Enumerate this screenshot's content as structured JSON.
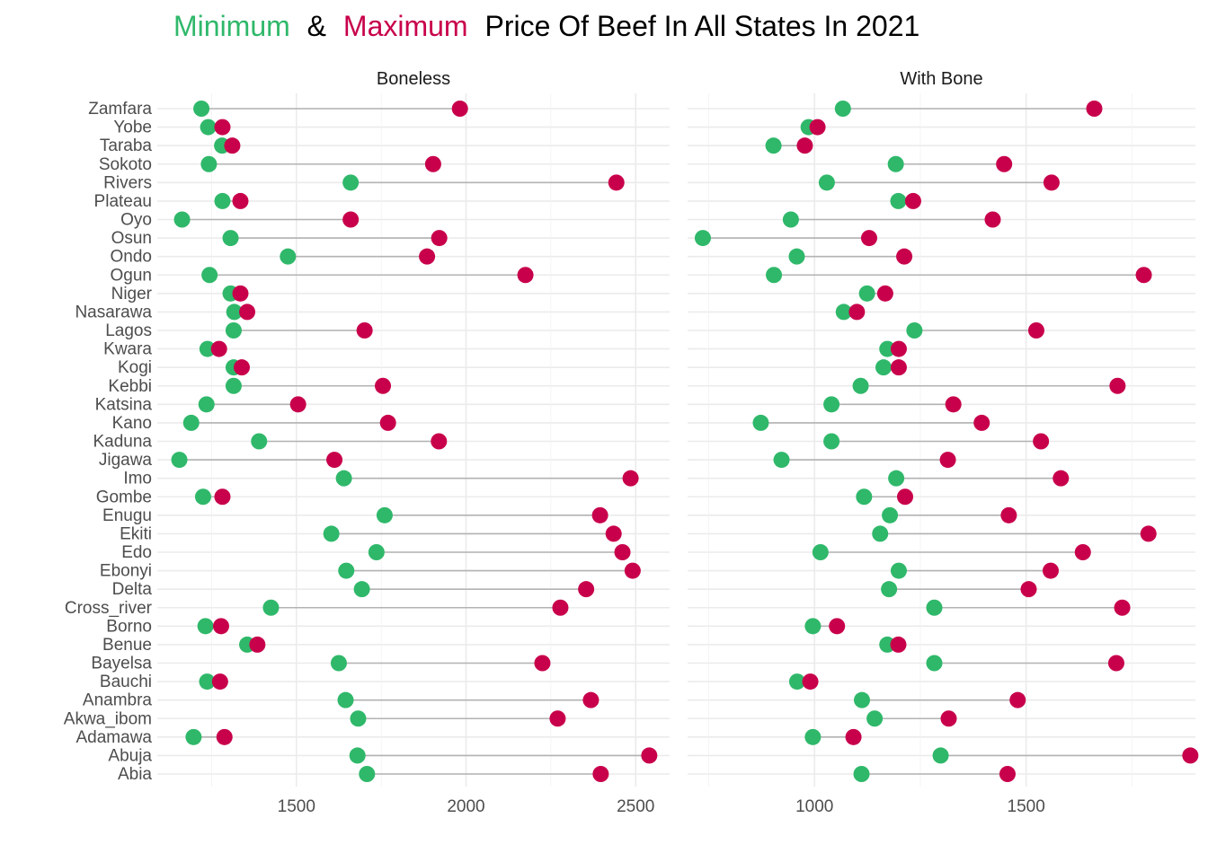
{
  "title": {
    "min_word": "Minimum",
    "amp": "&",
    "max_word": "Maximum",
    "rest": "Price Of Beef In All States In 2021"
  },
  "colors": {
    "minimum": "#2fb86a",
    "maximum": "#c8004b",
    "segment": "#b3b3b3",
    "grid": "#ebebeb"
  },
  "chart_data": {
    "type": "dumbbell",
    "legend": "none (colors explained in title)",
    "grid": true,
    "states": [
      "Abia",
      "Abuja",
      "Adamawa",
      "Akwa_ibom",
      "Anambra",
      "Bauchi",
      "Bayelsa",
      "Benue",
      "Borno",
      "Cross_river",
      "Delta",
      "Ebonyi",
      "Edo",
      "Ekiti",
      "Enugu",
      "Gombe",
      "Imo",
      "Jigawa",
      "Kaduna",
      "Kano",
      "Katsina",
      "Kebbi",
      "Kogi",
      "Kwara",
      "Lagos",
      "Nasarawa",
      "Niger",
      "Ogun",
      "Ondo",
      "Osun",
      "Oyo",
      "Plateau",
      "Rivers",
      "Sokoto",
      "Taraba",
      "Yobe",
      "Zamfara"
    ],
    "panels": [
      {
        "name": "Boneless",
        "xlim": [
          1090,
          2600
        ],
        "xticks": [
          1500,
          2000,
          2500
        ],
        "min": [
          1708,
          1680,
          1197,
          1682,
          1645,
          1237,
          1625,
          1355,
          1232,
          1425,
          1693,
          1647,
          1736,
          1603,
          1760,
          1225,
          1640,
          1155,
          1390,
          1190,
          1235,
          1315,
          1315,
          1238,
          1315,
          1317,
          1306,
          1244,
          1475,
          1306,
          1163,
          1282,
          1660,
          1242,
          1281,
          1240,
          1220
        ],
        "max": [
          2397,
          2540,
          1288,
          2270,
          2368,
          1275,
          2225,
          1385,
          1278,
          2278,
          2354,
          2491,
          2461,
          2435,
          2395,
          1282,
          2485,
          1612,
          1920,
          1770,
          1505,
          1755,
          1339,
          1272,
          1701,
          1355,
          1335,
          2175,
          1885,
          1921,
          1660,
          1335,
          2443,
          1903,
          1311,
          1282,
          1982
        ]
      },
      {
        "name": "With Bone",
        "xlim": [
          700,
          1900
        ],
        "xticks": [
          1000,
          1500
        ],
        "min": [
          1111,
          1298,
          996,
          1142,
          1112,
          959,
          1283,
          1172,
          996,
          1283,
          1176,
          1199,
          1014,
          1155,
          1178,
          1117,
          1193,
          922,
          1040,
          873,
          1040,
          1109,
          1163,
          1172,
          1236,
          1069,
          1124,
          904,
          958,
          736,
          944,
          1198,
          1029,
          1192,
          903,
          986,
          1067
        ],
        "max": [
          1456,
          1888,
          1092,
          1317,
          1480,
          990,
          1713,
          1198,
          1053,
          1727,
          1506,
          1558,
          1634,
          1789,
          1459,
          1214,
          1582,
          1315,
          1535,
          1395,
          1328,
          1716,
          1199,
          1199,
          1524,
          1100,
          1167,
          1778,
          1212,
          1129,
          1421,
          1233,
          1560,
          1448,
          977,
          1007,
          1661
        ]
      }
    ]
  }
}
